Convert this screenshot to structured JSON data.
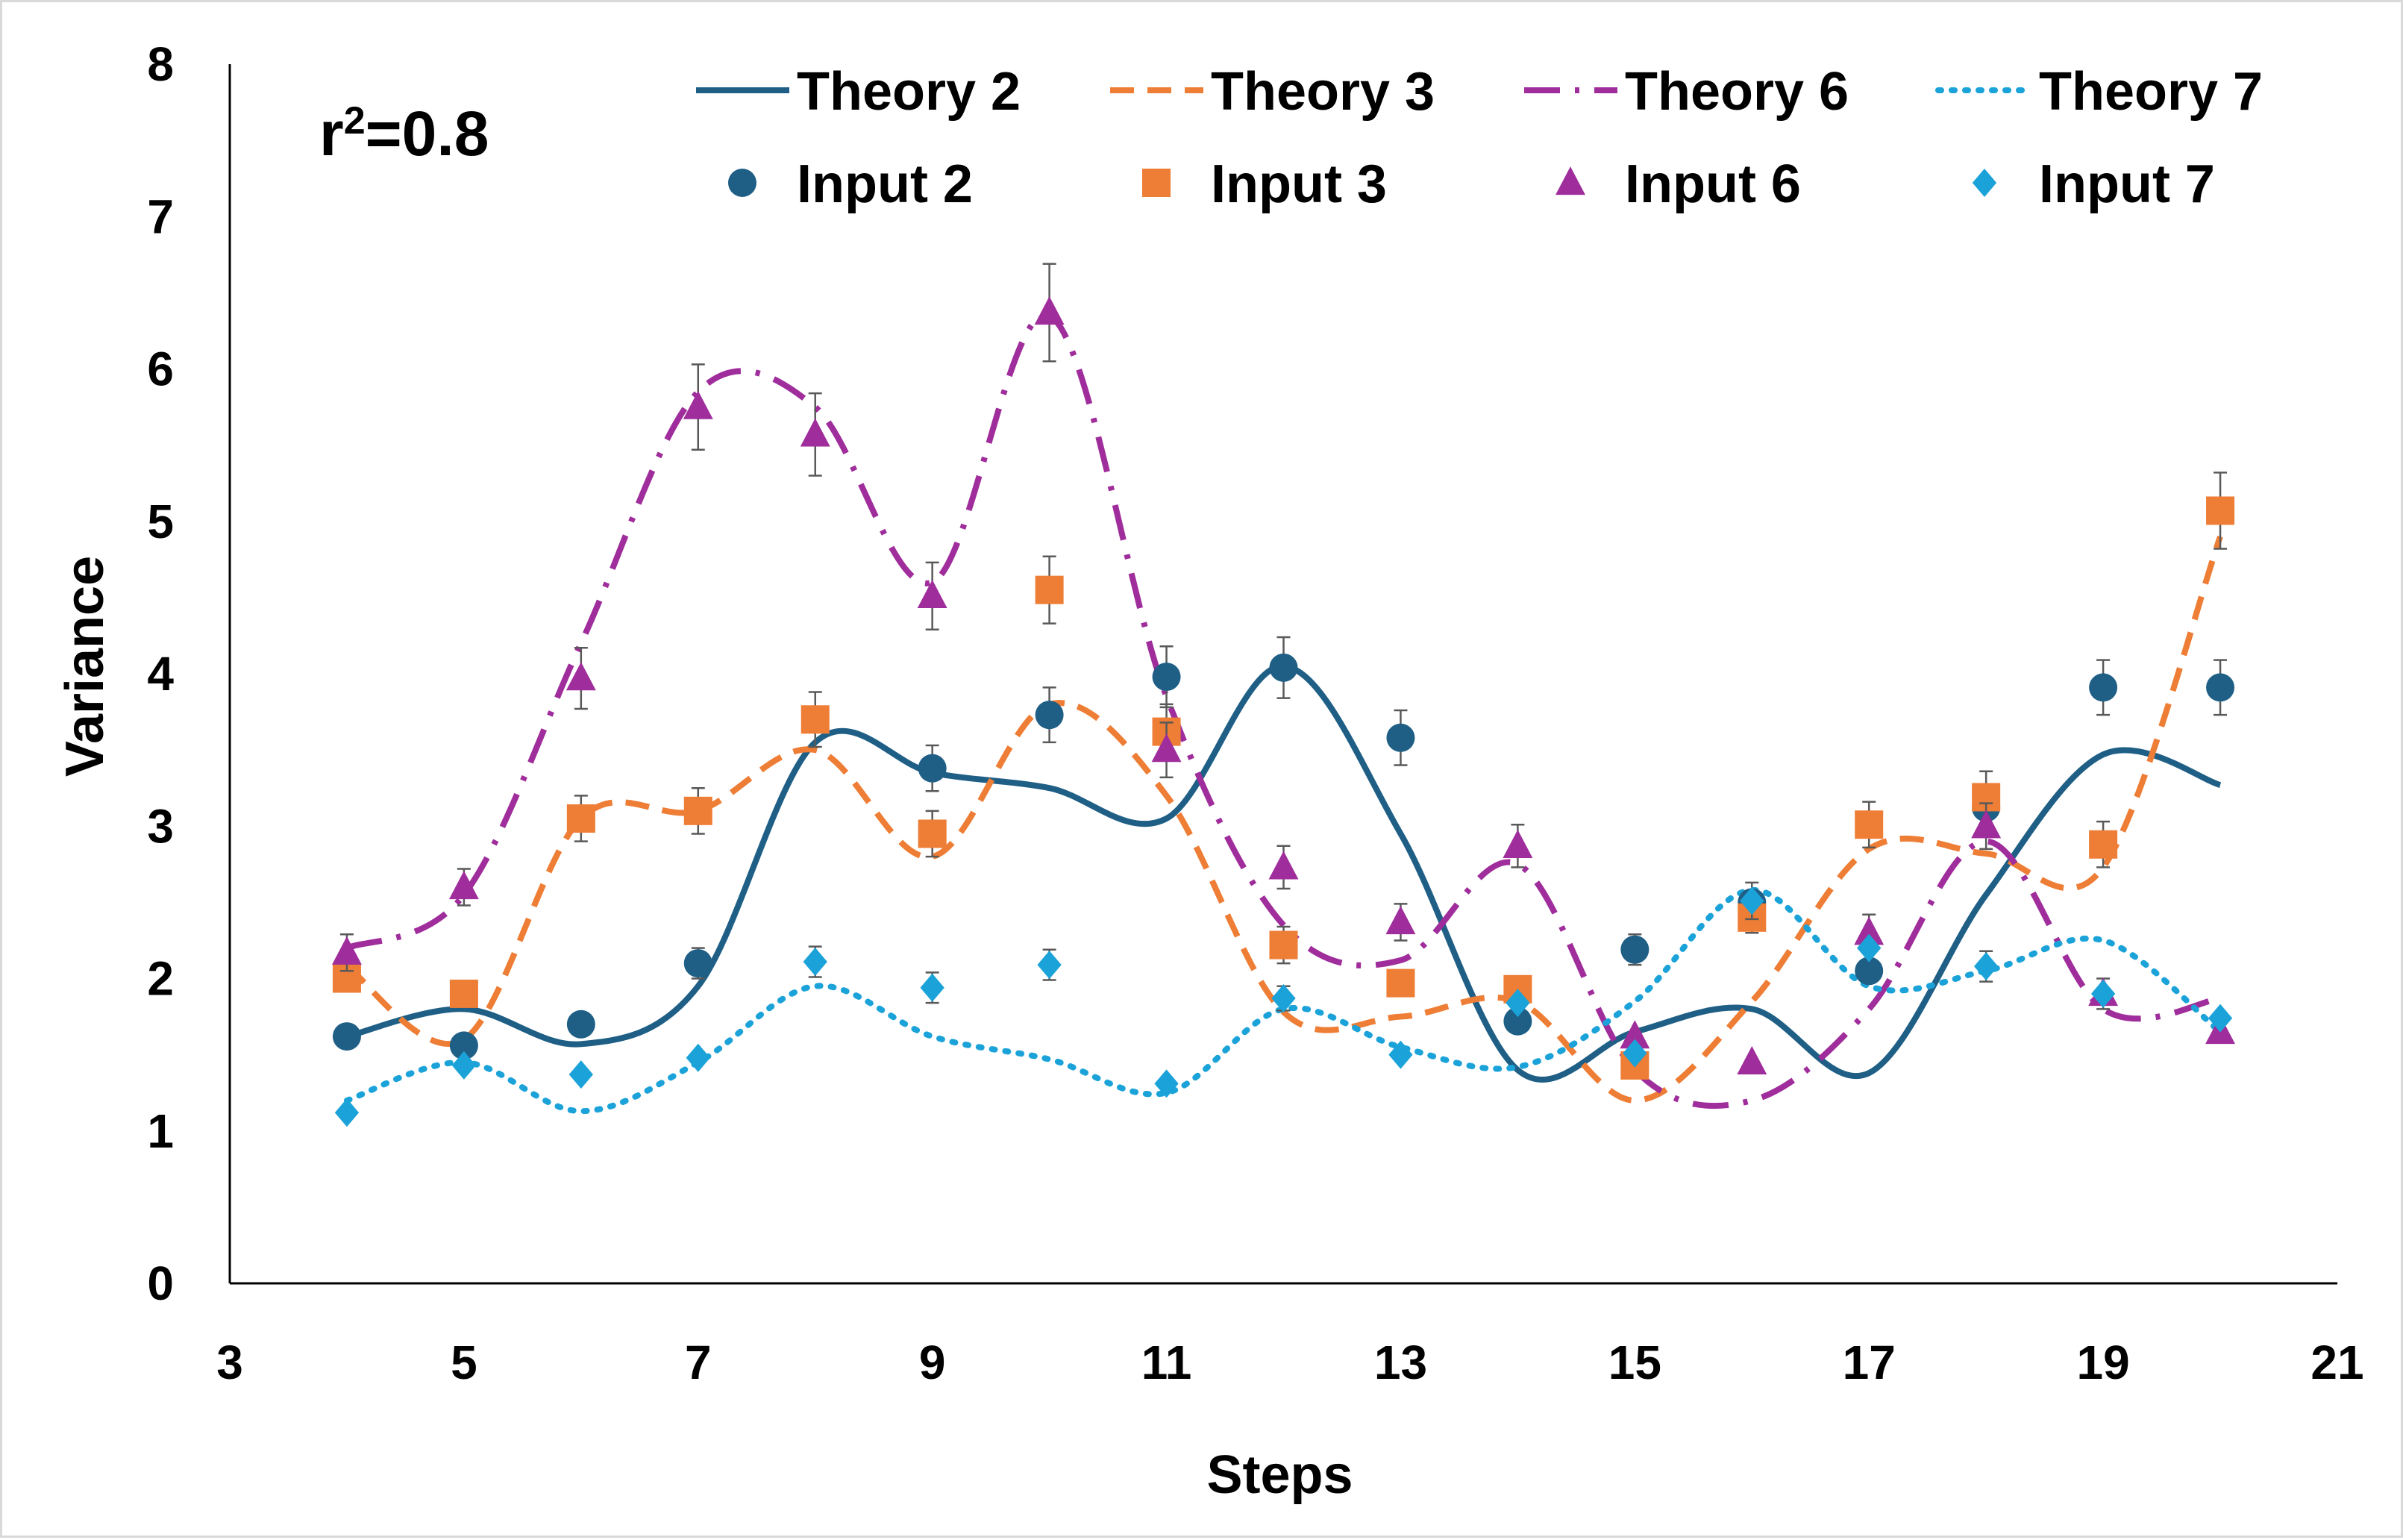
{
  "chart_data": {
    "type": "scatter",
    "title": "",
    "xlabel": "Steps",
    "ylabel": "Variance",
    "xlim": [
      3,
      21
    ],
    "ylim": [
      0,
      8
    ],
    "x_ticks": [
      "3",
      "5",
      "7",
      "9",
      "11",
      "13",
      "15",
      "17",
      "19",
      "21"
    ],
    "y_ticks": [
      "0",
      "1",
      "2",
      "3",
      "4",
      "5",
      "6",
      "7",
      "8"
    ],
    "grid": false,
    "legend_position": "top",
    "annotation": {
      "base": "r",
      "superscript": "2",
      "rest": "=0.8"
    },
    "x": [
      4,
      5,
      6,
      7,
      8,
      9,
      10,
      11,
      12,
      13,
      14,
      15,
      16,
      17,
      18,
      19,
      20
    ],
    "lines": [
      {
        "name": "Theory 2",
        "color": "#1f5f86",
        "style": "solid",
        "values": [
          1.62,
          1.8,
          1.57,
          1.95,
          3.55,
          3.35,
          3.25,
          3.05,
          4.05,
          2.95,
          1.4,
          1.65,
          1.8,
          1.38,
          2.55,
          3.47,
          3.27
        ]
      },
      {
        "name": "Theory 3",
        "color": "#ee7d35",
        "style": "dashed",
        "values": [
          2.08,
          1.6,
          3.05,
          3.1,
          3.5,
          2.8,
          3.8,
          3.2,
          1.78,
          1.75,
          1.85,
          1.2,
          1.85,
          2.85,
          2.82,
          2.73,
          4.9
        ]
      },
      {
        "name": "Theory 6",
        "color": "#9f2d9b",
        "style": "dashdot",
        "values": [
          2.2,
          2.55,
          4.2,
          5.85,
          5.75,
          4.6,
          6.35,
          3.85,
          2.35,
          2.12,
          2.75,
          1.4,
          1.2,
          1.8,
          2.9,
          1.8,
          1.87
        ]
      },
      {
        "name": "Theory 7",
        "color": "#1ba3d9",
        "style": "dotted",
        "values": [
          1.2,
          1.45,
          1.13,
          1.45,
          1.95,
          1.62,
          1.47,
          1.25,
          1.8,
          1.55,
          1.42,
          1.85,
          2.58,
          1.95,
          2.05,
          2.25,
          1.65
        ]
      }
    ],
    "series": [
      {
        "name": "Input 2",
        "color": "#1f5f86",
        "marker": "circle",
        "values": [
          1.62,
          1.56,
          1.7,
          2.1,
          null,
          3.38,
          3.73,
          3.98,
          4.04,
          3.58,
          1.72,
          2.19,
          2.5,
          2.05,
          3.12,
          3.91,
          3.91
        ],
        "errors": [
          null,
          null,
          null,
          0.1,
          null,
          0.15,
          0.18,
          0.2,
          0.2,
          0.18,
          null,
          0.1,
          null,
          null,
          null,
          0.18,
          0.18
        ]
      },
      {
        "name": "Input 3",
        "color": "#ee7d35",
        "marker": "square",
        "values": [
          2.0,
          1.9,
          3.05,
          3.1,
          3.7,
          2.95,
          4.55,
          3.62,
          2.22,
          1.97,
          1.93,
          1.43,
          2.4,
          3.01,
          3.19,
          2.88,
          5.07
        ],
        "errors": [
          null,
          null,
          0.15,
          0.15,
          0.18,
          0.15,
          0.22,
          0.18,
          0.12,
          null,
          null,
          null,
          0.1,
          0.15,
          0.17,
          0.15,
          0.25
        ]
      },
      {
        "name": "Input 6",
        "color": "#9f2d9b",
        "marker": "triangle",
        "values": [
          2.17,
          2.6,
          3.97,
          5.75,
          5.57,
          4.51,
          6.37,
          3.5,
          2.73,
          2.37,
          2.87,
          1.62,
          1.45,
          2.3,
          3.0,
          1.9,
          1.65
        ],
        "errors": [
          0.12,
          0.12,
          0.2,
          0.28,
          0.27,
          0.22,
          0.32,
          0.18,
          0.14,
          0.12,
          0.14,
          null,
          null,
          0.12,
          0.15,
          0.1,
          null
        ]
      },
      {
        "name": "Input 7",
        "color": "#1ba3d9",
        "marker": "diamond",
        "values": [
          1.12,
          1.43,
          1.37,
          1.48,
          2.11,
          1.94,
          2.09,
          1.31,
          1.87,
          1.5,
          1.84,
          1.51,
          2.51,
          2.2,
          2.08,
          1.9,
          1.74
        ],
        "errors": [
          null,
          null,
          null,
          null,
          0.1,
          0.1,
          0.1,
          null,
          0.08,
          null,
          null,
          null,
          0.12,
          null,
          0.1,
          null,
          null
        ]
      }
    ]
  }
}
